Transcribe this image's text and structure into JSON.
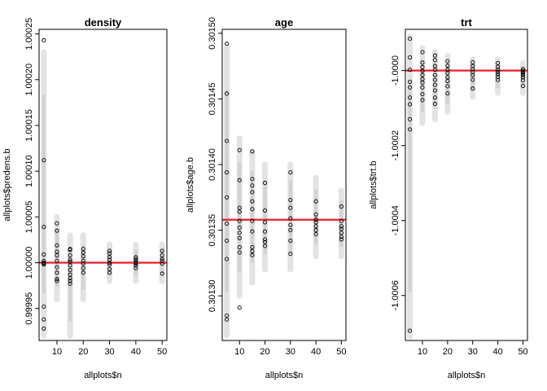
{
  "chart_data": [
    {
      "type": "scatter",
      "title": "density",
      "xlabel": "allplots$n",
      "ylabel": "allplots$predens.b",
      "xlim": [
        3.2,
        51.8
      ],
      "ylim": [
        0.999915,
        1.000255
      ],
      "xticks": [
        10,
        20,
        30,
        40,
        50
      ],
      "yticks": [
        0.99995,
        1.0,
        1.00005,
        1.0001,
        1.00015,
        1.0002,
        1.00025
      ],
      "ytick_labels": [
        "0.99995",
        "1.00000",
        "1.00005",
        "1.00010",
        "1.00015",
        "1.00020",
        "1.00025"
      ],
      "hline": 1.0,
      "hline_color": "#e8202a",
      "intervals": [
        {
          "x": 5,
          "lo": 0.99992,
          "hi": 1.00023
        },
        {
          "x": 10,
          "lo": 0.99996,
          "hi": 1.00005
        },
        {
          "x": 15,
          "lo": 0.99992,
          "hi": 1.00003
        },
        {
          "x": 20,
          "lo": 0.99996,
          "hi": 1.00003
        },
        {
          "x": 30,
          "lo": 0.99998,
          "hi": 1.00002
        },
        {
          "x": 40,
          "lo": 0.99998,
          "hi": 1.00002
        },
        {
          "x": 50,
          "lo": 0.99998,
          "hi": 1.00002
        }
      ],
      "points": {
        "x": [
          5,
          5,
          5,
          5,
          5,
          5,
          5,
          5,
          5,
          5,
          5,
          10,
          10,
          10,
          10,
          10,
          10,
          10,
          10,
          10,
          10,
          15,
          15,
          15,
          15,
          15,
          15,
          15,
          15,
          15,
          15,
          15,
          20,
          20,
          20,
          20,
          20,
          20,
          20,
          30,
          30,
          30,
          30,
          30,
          30,
          30,
          30,
          40,
          40,
          40,
          40,
          40,
          40,
          40,
          50,
          50,
          50,
          50,
          50,
          50
        ],
        "y": [
          1.000243,
          1.000112,
          1.000039,
          1.000009,
          1.000002,
          1.0,
          0.999999,
          0.999998,
          0.999952,
          0.999938,
          0.999928,
          1.000043,
          1.000035,
          1.000019,
          1.000012,
          1.000008,
          1.000002,
          0.999995,
          0.999989,
          0.999982,
          0.99998,
          1.000015,
          1.000014,
          1.000008,
          1.000003,
          1.000001,
          0.999997,
          0.999992,
          0.999987,
          0.999983,
          0.99998,
          0.999977,
          1.000015,
          1.000011,
          1.000007,
          1.000002,
          0.999999,
          0.999994,
          0.999989,
          1.000013,
          1.00001,
          1.000006,
          1.000003,
          1.0,
          0.999998,
          0.999993,
          0.999989,
          1.000006,
          1.000004,
          1.000002,
          1.0,
          0.999999,
          0.999997,
          0.999994,
          1.000013,
          1.000008,
          1.000004,
          1.000002,
          0.999999,
          0.999988
        ]
      }
    },
    {
      "type": "scatter",
      "title": "age",
      "xlabel": "allplots$n",
      "ylabel": "allplots$age.b",
      "xlim": [
        3.2,
        51.8
      ],
      "ylim": [
        0.301266,
        0.301503
      ],
      "xticks": [
        10,
        20,
        30,
        40,
        50
      ],
      "yticks": [
        0.3013,
        0.30135,
        0.3014,
        0.30145,
        0.3015
      ],
      "ytick_labels": [
        "0.30130",
        "0.30135",
        "0.30140",
        "0.30145",
        "0.30150"
      ],
      "hline": 0.301358,
      "hline_color": "#e8202a",
      "intervals": [
        {
          "x": 5,
          "lo": 0.30127,
          "hi": 0.30149
        },
        {
          "x": 10,
          "lo": 0.3013,
          "hi": 0.30142
        },
        {
          "x": 15,
          "lo": 0.30131,
          "hi": 0.30141
        },
        {
          "x": 20,
          "lo": 0.30132,
          "hi": 0.3014
        },
        {
          "x": 30,
          "lo": 0.30132,
          "hi": 0.3014
        },
        {
          "x": 40,
          "lo": 0.30133,
          "hi": 0.30139
        },
        {
          "x": 50,
          "lo": 0.30133,
          "hi": 0.30138
        }
      ],
      "points": {
        "x": [
          5,
          5,
          5,
          5,
          5,
          5,
          5,
          5,
          5,
          5,
          10,
          10,
          10,
          10,
          10,
          10,
          10,
          10,
          10,
          10,
          10,
          15,
          15,
          15,
          15,
          15,
          15,
          15,
          15,
          15,
          15,
          15,
          20,
          20,
          20,
          20,
          20,
          20,
          20,
          30,
          30,
          30,
          30,
          30,
          30,
          30,
          30,
          40,
          40,
          40,
          40,
          40,
          40,
          40,
          50,
          50,
          50,
          50,
          50,
          50,
          50
        ],
        "y": [
          0.301492,
          0.301454,
          0.301418,
          0.301394,
          0.301375,
          0.301342,
          0.301328,
          0.301285,
          0.301282,
          0.301355,
          0.301411,
          0.301388,
          0.301367,
          0.301364,
          0.301357,
          0.301352,
          0.301348,
          0.301344,
          0.301337,
          0.301333,
          0.301291,
          0.30141,
          0.301389,
          0.301384,
          0.301379,
          0.301372,
          0.301366,
          0.301357,
          0.301349,
          0.301337,
          0.301334,
          0.301331,
          0.301386,
          0.301365,
          0.301356,
          0.301349,
          0.301343,
          0.301341,
          0.301338,
          0.301394,
          0.301373,
          0.301367,
          0.301359,
          0.301354,
          0.30135,
          0.301342,
          0.301332,
          0.301372,
          0.301362,
          0.301358,
          0.301356,
          0.301353,
          0.30135,
          0.301347,
          0.301368,
          0.301357,
          0.301353,
          0.301351,
          0.301348,
          0.301345,
          0.301343
        ]
      }
    },
    {
      "type": "scatter",
      "title": "trt",
      "xlabel": "allplots$n",
      "ylabel": "allplots$trt.b",
      "xlim": [
        3.2,
        51.8
      ],
      "ylim": [
        -1.00072,
        -0.99989
      ],
      "xticks": [
        10,
        20,
        30,
        40,
        50
      ],
      "yticks": [
        -1.0,
        -1.0002,
        -1.0004,
        -1.0006
      ],
      "ytick_labels": [
        "-1.0000",
        "-1.0002",
        "-1.0004",
        "-1.0006"
      ],
      "hline": -1.0,
      "hline_color": "#e8202a",
      "intervals": [
        {
          "x": 5,
          "lo": -1.00071,
          "hi": -0.99991
        },
        {
          "x": 10,
          "lo": -1.00014,
          "hi": -0.99994
        },
        {
          "x": 15,
          "lo": -1.00013,
          "hi": -0.99995
        },
        {
          "x": 20,
          "lo": -1.00011,
          "hi": -0.99996
        },
        {
          "x": 30,
          "lo": -1.00007,
          "hi": -0.99997
        },
        {
          "x": 40,
          "lo": -1.00006,
          "hi": -0.99997
        },
        {
          "x": 50,
          "lo": -1.00006,
          "hi": -0.99998
        }
      ],
      "points": {
        "x": [
          5,
          5,
          5,
          5,
          5,
          5,
          5,
          5,
          5,
          5,
          10,
          10,
          10,
          10,
          10,
          10,
          10,
          10,
          10,
          10,
          15,
          15,
          15,
          15,
          15,
          15,
          15,
          15,
          15,
          15,
          20,
          20,
          20,
          20,
          20,
          20,
          20,
          20,
          30,
          30,
          30,
          30,
          30,
          30,
          30,
          40,
          40,
          40,
          40,
          40,
          40,
          40,
          50,
          50,
          50,
          50,
          50,
          50,
          50,
          50
        ],
        "y": [
          -0.999915,
          -0.999965,
          -0.999998,
          -1.00003,
          -1.000045,
          -1.000072,
          -1.00009,
          -1.00013,
          -1.000157,
          -1.000694,
          -0.999951,
          -0.999979,
          -0.999991,
          -1.000001,
          -1.000012,
          -1.000023,
          -1.000032,
          -1.000045,
          -1.000063,
          -1.000079,
          -0.99996,
          -0.999972,
          -0.999988,
          -0.999998,
          -1.000012,
          -1.000025,
          -1.000038,
          -1.000053,
          -1.000072,
          -1.000089,
          -0.999975,
          -0.999987,
          -0.999998,
          -1.000007,
          -1.000018,
          -1.000028,
          -1.000042,
          -1.000061,
          -0.999978,
          -0.999988,
          -0.999996,
          -1.000004,
          -1.000012,
          -1.000025,
          -1.000048,
          -0.99998,
          -0.99999,
          -0.999998,
          -1.000004,
          -1.00001,
          -1.000017,
          -1.000025,
          -0.999996,
          -1.000001,
          -1.000004,
          -1.000007,
          -1.000012,
          -1.000018,
          -1.000026,
          -1.000041
        ]
      }
    }
  ]
}
